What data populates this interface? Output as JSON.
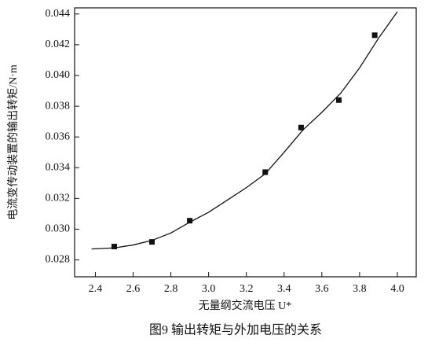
{
  "chart_data": {
    "type": "scatter",
    "title": "图9 输出转矩与外加电压的关系",
    "x_label": "无量纲交流电压 U*",
    "y_label": "电流变传动装置的输出转矩/N·m",
    "xlim": [
      2.29,
      4.1
    ],
    "ylim": [
      0.0269,
      0.0444
    ],
    "xticks": [
      2.4,
      2.6,
      2.8,
      {
        "value": 3.0,
        "label": "3.0"
      },
      3.2,
      3.4,
      3.6,
      3.8,
      {
        "value": 4.0,
        "label": "4.0"
      }
    ],
    "yticks": [
      0.028,
      {
        "value": 0.03,
        "label": "0.030"
      },
      0.032,
      0.034,
      0.036,
      0.038,
      {
        "value": 0.04,
        "label": "0.040"
      },
      0.042,
      0.044
    ],
    "series": [
      {
        "type": "scatter",
        "color": "#111111",
        "x": [
          2.5,
          2.7,
          2.9,
          3.3,
          3.49,
          3.69,
          3.88
        ],
        "values": [
          0.02887,
          0.02917,
          0.03055,
          0.03371,
          0.03661,
          0.0384,
          0.04262
        ]
      },
      {
        "type": "line",
        "color": "#111111",
        "x": [
          2.38,
          2.5,
          2.6,
          2.7,
          2.8,
          2.9,
          3.0,
          3.1,
          3.2,
          3.3,
          3.4,
          3.5,
          3.6,
          3.7,
          3.8,
          3.9,
          4.0
        ],
        "values": [
          0.02871,
          0.02878,
          0.02897,
          0.02927,
          0.02975,
          0.03045,
          0.0311,
          0.0319,
          0.0327,
          0.0336,
          0.035,
          0.03646,
          0.0376,
          0.03885,
          0.0405,
          0.04242,
          0.04415
        ]
      }
    ]
  }
}
